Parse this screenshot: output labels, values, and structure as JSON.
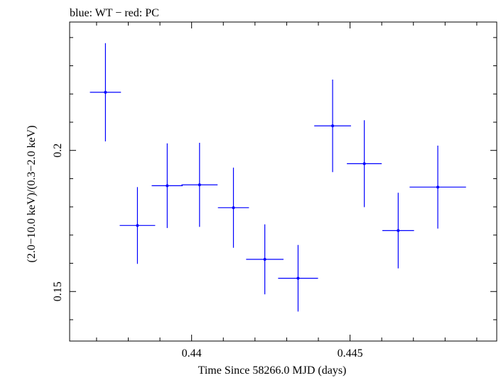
{
  "chart_data": {
    "type": "scatter",
    "title": "blue: WT − red: PC",
    "xlabel": "Time Since 58266.0 MJD (days)",
    "ylabel": "(2.0−10.0 keV)/(0.3−2.0 keV)",
    "xlim": [
      0.43615,
      0.44963
    ],
    "ylim": [
      0.13244,
      0.2455
    ],
    "x_ticks": [
      {
        "value": 0.44,
        "label": "0.44"
      },
      {
        "value": 0.445,
        "label": "0.445"
      }
    ],
    "y_ticks": [
      {
        "value": 0.15,
        "label": "0.15"
      },
      {
        "value": 0.2,
        "label": "0.2"
      }
    ],
    "grid": false,
    "series": [
      {
        "color": "#0000ff",
        "points": [
          {
            "x": 0.43728,
            "xerr": 0.00049,
            "y": 0.2206,
            "yerr": 0.0174
          },
          {
            "x": 0.43829,
            "xerr": 0.00056,
            "y": 0.1734,
            "yerr": 0.0136
          },
          {
            "x": 0.43923,
            "xerr": 0.00049,
            "y": 0.1875,
            "yerr": 0.015
          },
          {
            "x": 0.44025,
            "xerr": 0.00057,
            "y": 0.1878,
            "yerr": 0.0149
          },
          {
            "x": 0.44132,
            "xerr": 0.00049,
            "y": 0.1797,
            "yerr": 0.0142
          },
          {
            "x": 0.44231,
            "xerr": 0.00059,
            "y": 0.1614,
            "yerr": 0.0124
          },
          {
            "x": 0.44336,
            "xerr": 0.00063,
            "y": 0.1547,
            "yerr": 0.0118
          },
          {
            "x": 0.44445,
            "xerr": 0.00058,
            "y": 0.2087,
            "yerr": 0.0164
          },
          {
            "x": 0.44545,
            "xerr": 0.00055,
            "y": 0.1953,
            "yerr": 0.0154
          },
          {
            "x": 0.44652,
            "xerr": 0.0005,
            "y": 0.1716,
            "yerr": 0.0134
          },
          {
            "x": 0.44777,
            "xerr": 0.00089,
            "y": 0.187,
            "yerr": 0.0147
          }
        ]
      }
    ]
  }
}
